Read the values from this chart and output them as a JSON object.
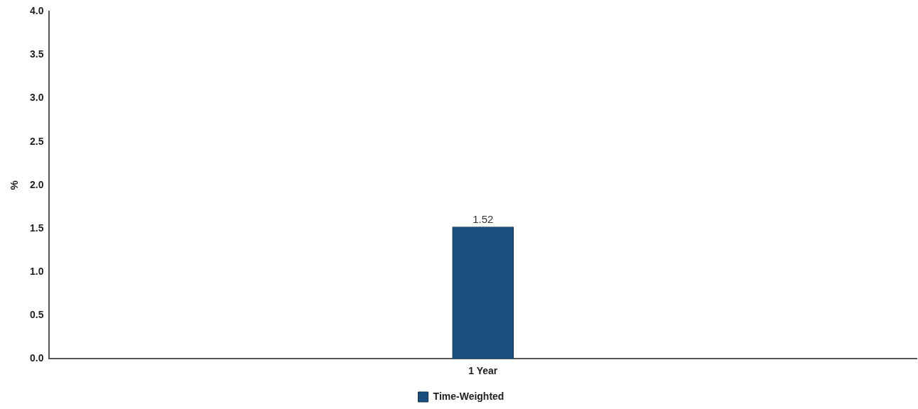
{
  "chart_data": {
    "type": "bar",
    "ylabel": "%",
    "categories": [
      "1 Year"
    ],
    "series": [
      {
        "name": "Time-Weighted",
        "color": "#1b4f80",
        "values": [
          1.52
        ]
      }
    ],
    "ylim": [
      0,
      4.0
    ],
    "yticks": [
      {
        "value": 0,
        "label": "0.0"
      },
      {
        "value": 0.5,
        "label": "0.5"
      },
      {
        "value": 1,
        "label": "1.0"
      },
      {
        "value": 1.5,
        "label": "1.5"
      },
      {
        "value": 2,
        "label": "2.0"
      },
      {
        "value": 2.5,
        "label": "2.5"
      },
      {
        "value": 3,
        "label": "3.0"
      },
      {
        "value": 3.5,
        "label": "3.5"
      },
      {
        "value": 4,
        "label": "4.0"
      }
    ],
    "grid": false,
    "legend": "bottom",
    "data_labels": true
  }
}
